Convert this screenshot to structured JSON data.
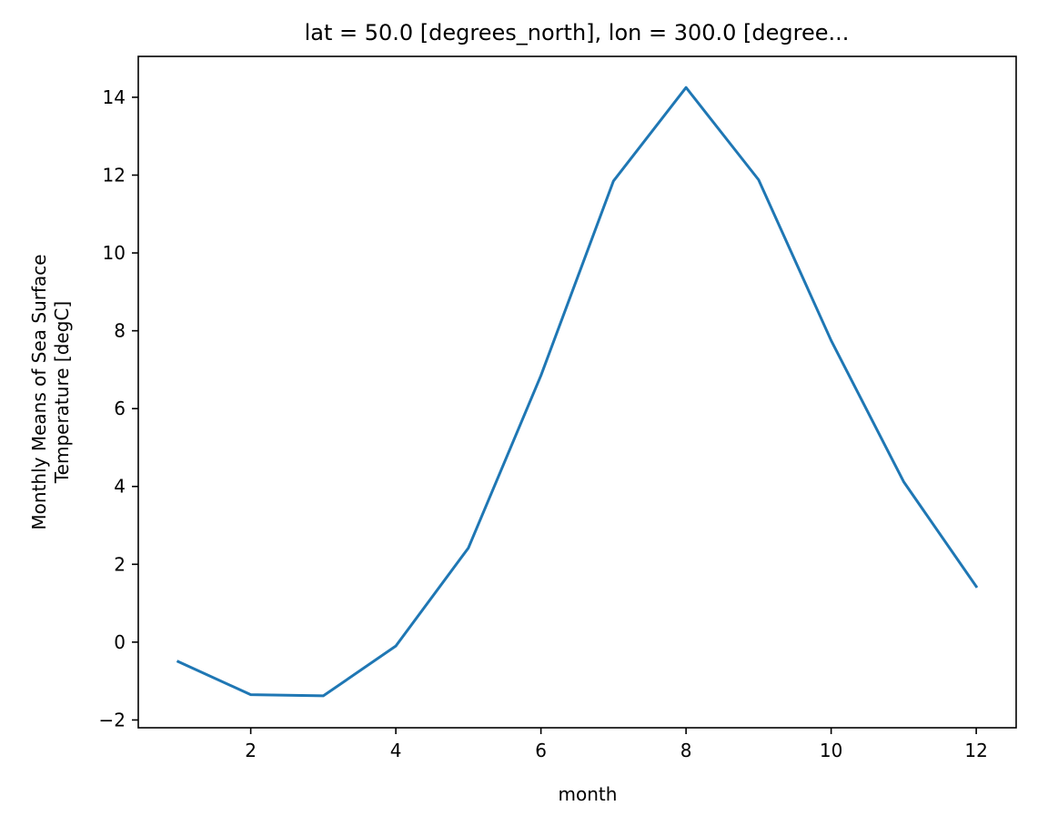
{
  "chart_data": {
    "type": "line",
    "title": "lat = 50.0 [degrees_north], lon = 300.0 [degree...",
    "xlabel": "month",
    "ylabel_lines": [
      "Monthly Means of Sea Surface",
      "Temperature [degC]"
    ],
    "xlim": [
      0.45,
      12.55
    ],
    "ylim": [
      -2.2,
      15.05
    ],
    "xticks": [
      2,
      4,
      6,
      8,
      10,
      12
    ],
    "xtick_labels": [
      "2",
      "4",
      "6",
      "8",
      "10",
      "12"
    ],
    "yticks": [
      -2,
      0,
      2,
      4,
      6,
      8,
      10,
      12,
      14
    ],
    "ytick_labels": [
      "−2",
      "0",
      "2",
      "4",
      "6",
      "8",
      "10",
      "12",
      "14"
    ],
    "grid": false,
    "series": [
      {
        "color": "#1f77b4",
        "x": [
          1,
          2,
          3,
          4,
          5,
          6,
          7,
          8,
          9,
          10,
          11,
          12
        ],
        "y": [
          -0.5,
          -1.35,
          -1.38,
          -0.1,
          2.42,
          6.85,
          11.85,
          14.25,
          11.88,
          7.75,
          4.12,
          1.43
        ]
      }
    ]
  }
}
